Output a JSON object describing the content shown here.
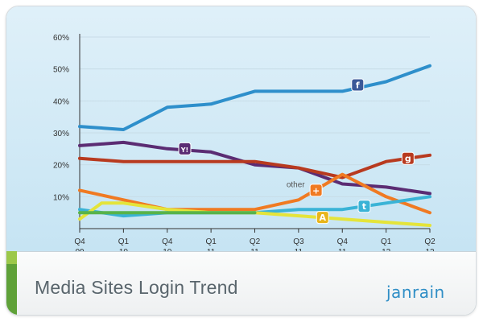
{
  "footer": {
    "title": "Media Sites Login Trend",
    "brand": "janrain"
  },
  "chart_data": {
    "type": "line",
    "title": "Media Sites Login Trend",
    "xlabel": "",
    "ylabel": "",
    "ylim": [
      0,
      60
    ],
    "y_ticks": [
      "10%",
      "20%",
      "30%",
      "40%",
      "50%",
      "60%"
    ],
    "y_tick_values": [
      10,
      20,
      30,
      40,
      50,
      60
    ],
    "x": [
      0,
      1,
      2,
      3,
      4,
      5,
      6,
      7,
      8
    ],
    "categories": [
      {
        "q": "Q4",
        "y": "09"
      },
      {
        "q": "Q1",
        "y": "10"
      },
      {
        "q": "Q4",
        "y": "10"
      },
      {
        "q": "Q1",
        "y": "11"
      },
      {
        "q": "Q2",
        "y": "11"
      },
      {
        "q": "Q3",
        "y": "11"
      },
      {
        "q": "Q4",
        "y": "11"
      },
      {
        "q": "Q1",
        "y": "12"
      },
      {
        "q": "Q2",
        "y": "12"
      }
    ],
    "grid": true,
    "annotation": "other",
    "series": [
      {
        "icon": "facebook-icon",
        "color": "#2e8fcb",
        "points": [
          [
            0,
            32
          ],
          [
            1,
            31
          ],
          [
            2,
            38
          ],
          [
            3,
            39
          ],
          [
            4,
            43
          ],
          [
            5,
            43
          ],
          [
            6,
            43
          ],
          [
            7,
            46
          ],
          [
            8,
            51
          ]
        ]
      },
      {
        "icon": "yahoo-icon",
        "color": "#5b2c73",
        "points": [
          [
            0,
            26
          ],
          [
            1,
            27
          ],
          [
            2,
            25
          ],
          [
            3,
            24
          ],
          [
            4,
            20
          ],
          [
            5,
            19
          ],
          [
            6,
            14
          ],
          [
            7,
            13
          ],
          [
            8,
            11
          ]
        ]
      },
      {
        "icon": "google-icon",
        "color": "#b83a1f",
        "points": [
          [
            0,
            22
          ],
          [
            1,
            21
          ],
          [
            2,
            21
          ],
          [
            3,
            21
          ],
          [
            4,
            21
          ],
          [
            5,
            19
          ],
          [
            6,
            16
          ],
          [
            7,
            21
          ],
          [
            8,
            23
          ]
        ]
      },
      {
        "icon": "other-icon",
        "color": "#f07a22",
        "points": [
          [
            0,
            12
          ],
          [
            1,
            9
          ],
          [
            2,
            6
          ],
          [
            3,
            6
          ],
          [
            4,
            6
          ],
          [
            5,
            9
          ],
          [
            5.5,
            13
          ],
          [
            6,
            17
          ],
          [
            7,
            10
          ],
          [
            8,
            5
          ]
        ]
      },
      {
        "icon": "twitter-icon",
        "color": "#3ab3d6",
        "points": [
          [
            0,
            6
          ],
          [
            1,
            4
          ],
          [
            2,
            5
          ],
          [
            3,
            5
          ],
          [
            4,
            5
          ],
          [
            5,
            6
          ],
          [
            6,
            6
          ],
          [
            7,
            8
          ],
          [
            8,
            10
          ]
        ]
      },
      {
        "icon": "aol-icon",
        "color": "#e4e43a",
        "points": [
          [
            0,
            3
          ],
          [
            0.5,
            8
          ],
          [
            1,
            8
          ],
          [
            2,
            6
          ],
          [
            3,
            5
          ],
          [
            4,
            5
          ],
          [
            5,
            4
          ],
          [
            6,
            3
          ],
          [
            7,
            2
          ],
          [
            8,
            1
          ]
        ]
      },
      {
        "icon": "",
        "color": "#58b34a",
        "points": [
          [
            0,
            5
          ],
          [
            1,
            5
          ],
          [
            2,
            5
          ],
          [
            3,
            5
          ],
          [
            4,
            5
          ]
        ]
      }
    ],
    "markers": [
      {
        "icon": "facebook-icon",
        "x": 6.35,
        "y": 45,
        "color": "#3b5998",
        "glyph": "f"
      },
      {
        "icon": "yahoo-icon",
        "x": 2.4,
        "y": 25,
        "color": "#5b2c73",
        "glyph": "Y!"
      },
      {
        "icon": "google-icon",
        "x": 7.5,
        "y": 22,
        "color": "#b83a1f",
        "glyph": "g"
      },
      {
        "icon": "other-icon",
        "x": 5.4,
        "y": 12,
        "color": "#f07a22",
        "glyph": "+"
      },
      {
        "icon": "twitter-icon",
        "x": 6.5,
        "y": 7,
        "color": "#3ab3d6",
        "glyph": "t"
      },
      {
        "icon": "aol-icon",
        "x": 5.55,
        "y": 3.5,
        "color": "#e8b51b",
        "glyph": "A"
      }
    ]
  }
}
